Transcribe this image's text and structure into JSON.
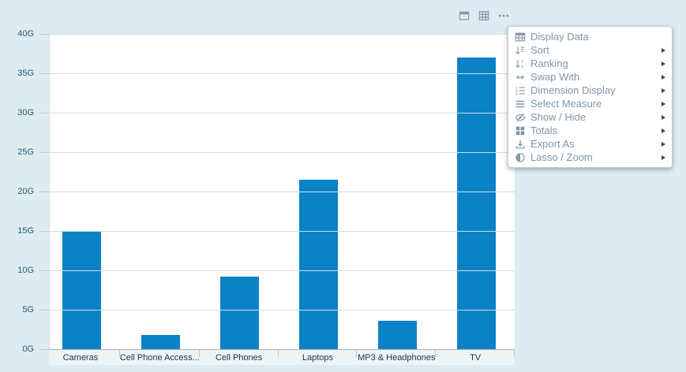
{
  "colors": {
    "bar": "#0b82c6",
    "page_background": "#dcecf0",
    "menu_text": "#7e97a6",
    "axis_label": "#2e5a70"
  },
  "toolbar": {
    "icons": [
      {
        "name": "panel-view-icon"
      },
      {
        "name": "table-view-icon"
      },
      {
        "name": "more-options-icon"
      }
    ]
  },
  "context_menu": {
    "items": [
      {
        "label": "Display Data",
        "icon": "table-grid",
        "has_submenu": false
      },
      {
        "label": "Sort",
        "icon": "sort",
        "has_submenu": true
      },
      {
        "label": "Ranking",
        "icon": "ranking",
        "has_submenu": true
      },
      {
        "label": "Swap With",
        "icon": "swap",
        "has_submenu": true
      },
      {
        "label": "Dimension Display",
        "icon": "numbered-list",
        "has_submenu": true
      },
      {
        "label": "Select Measure",
        "icon": "lines",
        "has_submenu": true
      },
      {
        "label": "Show / Hide",
        "icon": "eye-hidden",
        "has_submenu": true
      },
      {
        "label": "Totals",
        "icon": "grid-squares",
        "has_submenu": true
      },
      {
        "label": "Export As",
        "icon": "download",
        "has_submenu": true
      },
      {
        "label": "Lasso / Zoom",
        "icon": "half-circle",
        "has_submenu": true
      }
    ]
  },
  "chart_data": {
    "type": "bar",
    "title": "",
    "categories": [
      "Cameras",
      "Cell Phone Access...",
      "Cell Phones",
      "Laptops",
      "MP3 & Headphones",
      "TV"
    ],
    "values": [
      15,
      1.8,
      9.2,
      21.5,
      3.6,
      37
    ],
    "unit": "G",
    "y_ticks": [
      "0G",
      "5G",
      "10G",
      "15G",
      "20G",
      "25G",
      "30G",
      "35G",
      "40G"
    ],
    "ylim": [
      0,
      40
    ],
    "xlabel": "",
    "ylabel": "",
    "grid": true,
    "legend": "none",
    "bar_color": "#0b82c6"
  }
}
